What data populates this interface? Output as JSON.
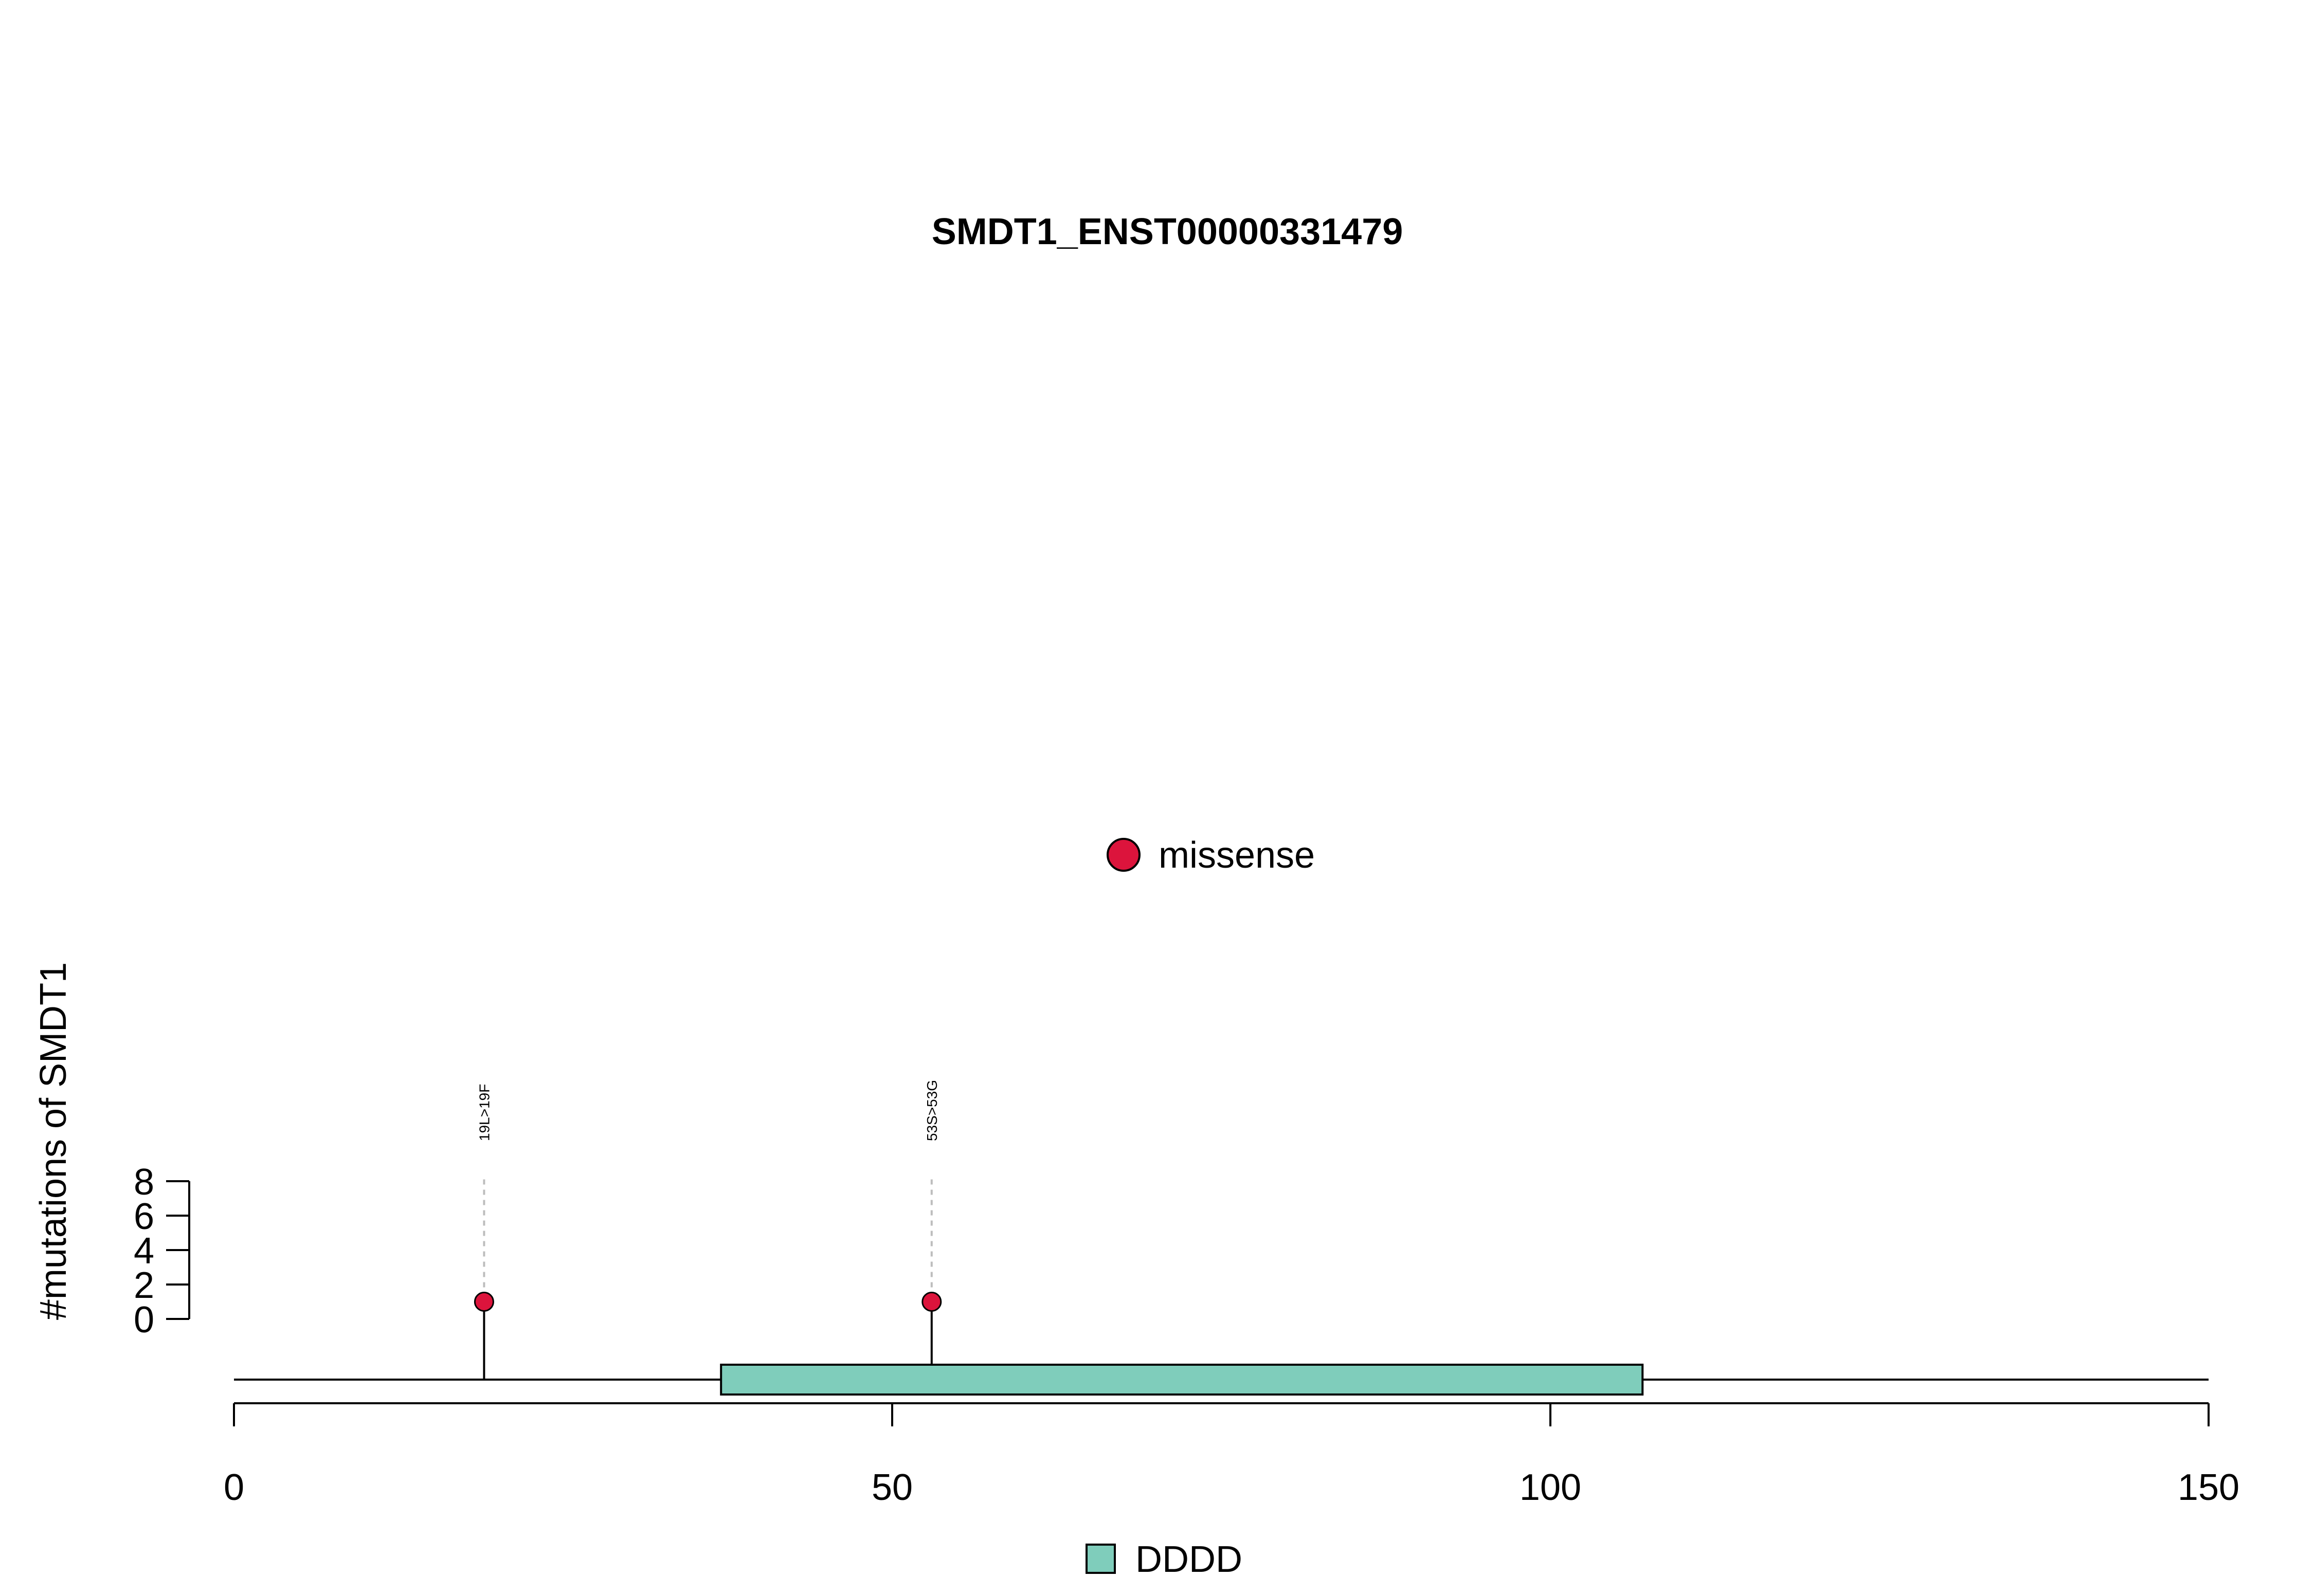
{
  "chart_data": {
    "type": "lollipop",
    "title": "SMDT1_ENST00000331479",
    "ylabel": "#mutations of SMDT1",
    "xlim": [
      0,
      150
    ],
    "x_ticks": [
      0,
      50,
      100,
      150
    ],
    "y_ticks": [
      0,
      2,
      4,
      6,
      8
    ],
    "ylim": [
      0,
      8
    ],
    "protein_length": 150,
    "mutations": [
      {
        "position": 19,
        "count": 1,
        "label": "19L>19F",
        "type": "missense"
      },
      {
        "position": 53,
        "count": 1,
        "label": "53S>53G",
        "type": "missense"
      }
    ],
    "domains": [
      {
        "name": "DDDD",
        "start": 37,
        "end": 107,
        "color": "#7fcdbb"
      }
    ],
    "mutation_legend": [
      {
        "label": "missense",
        "color": "#dc143c"
      }
    ],
    "domain_legend": [
      {
        "label": "DDDD",
        "color": "#7fcdbb"
      }
    ]
  }
}
